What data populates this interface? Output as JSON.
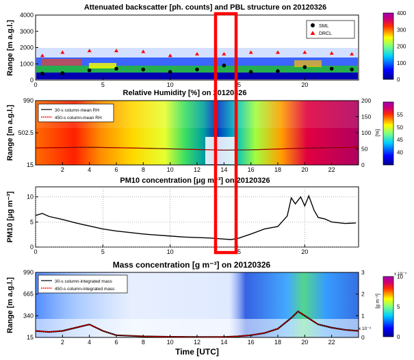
{
  "colors": {
    "highlight_box": "#ff0000",
    "sml": "#000000",
    "drcl": "#ff0000"
  },
  "chart_data": [
    {
      "type": "heatmap",
      "title": "Attenuated backscatter [ph. counts] and PBL structure on 20120326",
      "ylabel": "Range [m a.g.l.]",
      "ylim": [
        0,
        4000
      ],
      "xlim": [
        0,
        24
      ],
      "xticks": [
        "0",
        "5",
        "10",
        "15",
        "20"
      ],
      "yticks": [
        "0",
        "1000",
        "2000",
        "3000",
        "4000"
      ],
      "colorbar": {
        "ticks": [
          "0",
          "100",
          "200",
          "300",
          "400"
        ],
        "range": [
          0,
          400
        ]
      },
      "legend": [
        "SML",
        "DRCL"
      ],
      "series": [
        {
          "name": "SML",
          "x": [
            0.5,
            2,
            4,
            6,
            8,
            10,
            12,
            14,
            16,
            18,
            20,
            22,
            23.5
          ],
          "values": [
            400,
            420,
            600,
            700,
            650,
            500,
            650,
            900,
            500,
            550,
            800,
            700,
            650
          ]
        },
        {
          "name": "DRCL",
          "x": [
            0.5,
            2,
            4,
            6,
            8,
            10,
            12,
            14,
            16,
            18,
            20,
            22,
            23.5
          ],
          "values": [
            1500,
            1700,
            1800,
            1800,
            1750,
            1500,
            1600,
            1600,
            1700,
            1700,
            1700,
            1650,
            1600
          ]
        }
      ]
    },
    {
      "type": "heatmap",
      "title": "Relative Humidity [%] on 20120326",
      "ylabel": "Range [m a.g.l.]",
      "y2label": "[%]",
      "xlim": [
        0,
        24
      ],
      "xticks": [
        "2",
        "4",
        "6",
        "8",
        "10",
        "12",
        "14",
        "16",
        "18",
        "20",
        "22"
      ],
      "yticks": [
        "15",
        "502.5",
        "990"
      ],
      "y2ticks": [
        "0",
        "50",
        "100",
        "150",
        "200"
      ],
      "colorbar": {
        "ticks": [
          "40",
          "45",
          "50",
          "55"
        ],
        "range": [
          35,
          60
        ]
      },
      "legend": [
        "30-s column-mean RH",
        "450-s column-mean RH"
      ],
      "series": [
        {
          "name": "450-s column-mean RH",
          "x": [
            0,
            4,
            8,
            12,
            14,
            16,
            20,
            24
          ],
          "values": [
            53,
            55,
            52,
            48,
            46,
            47,
            52,
            55
          ]
        }
      ]
    },
    {
      "type": "line",
      "title": "PM10 concentration [μg m⁻³] on 20120326",
      "ylabel": "PM10 [μg m⁻³]",
      "ylim": [
        0,
        12
      ],
      "xlim": [
        0,
        24
      ],
      "xticks": [
        "0",
        "5",
        "10",
        "15",
        "20"
      ],
      "yticks": [
        "0",
        "5",
        "10"
      ],
      "grid": true,
      "x": [
        0,
        0.5,
        1,
        2,
        3,
        4,
        5,
        6,
        7,
        8,
        9,
        10,
        11,
        12,
        13,
        14,
        14.5,
        15,
        16,
        17,
        18,
        18.7,
        19,
        19.3,
        19.7,
        20,
        20.3,
        20.7,
        21,
        21.5,
        22,
        23,
        23.8
      ],
      "values": [
        6.3,
        6.7,
        6.1,
        5.5,
        4.8,
        4.2,
        3.6,
        3.2,
        2.9,
        2.6,
        2.4,
        2.2,
        2.0,
        1.9,
        1.8,
        1.6,
        1.5,
        1.7,
        2.6,
        3.6,
        4.1,
        6.2,
        9.8,
        8.6,
        10.0,
        8.2,
        10.2,
        7.3,
        5.9,
        5.6,
        5.0,
        4.7,
        4.8
      ]
    },
    {
      "type": "heatmap",
      "title": "Mass concentration [g m⁻³] on 20120326",
      "xlabel": "Time [UTC]",
      "ylabel": "Range [m a.g.l.]",
      "y2label": "[g m⁻²]",
      "y2scale": "x 10⁻³",
      "xlim": [
        0,
        24
      ],
      "xticks": [
        "2",
        "4",
        "6",
        "8",
        "10",
        "12",
        "14",
        "16",
        "18",
        "20",
        "22"
      ],
      "yticks": [
        "15",
        "340",
        "665",
        "990"
      ],
      "y2ticks": [
        "0",
        "1",
        "2",
        "3"
      ],
      "colorbar": {
        "ticks": [
          "0",
          "5",
          "10"
        ],
        "range": [
          0,
          10
        ],
        "scale": "x 10⁻³"
      },
      "legend": [
        "30-s column-integrated mass",
        "450-s column-integrated mass"
      ],
      "series": [
        {
          "name": "450-s column-integrated mass",
          "x": [
            0,
            1,
            2,
            3,
            4,
            5,
            6,
            8,
            10,
            12,
            14,
            15,
            16,
            17,
            18,
            19,
            19.5,
            20,
            20.5,
            21,
            22,
            23,
            24
          ],
          "values": [
            0.3,
            0.25,
            0.3,
            0.45,
            0.6,
            0.3,
            0.1,
            0.05,
            0.03,
            0.02,
            0.02,
            0.05,
            0.1,
            0.2,
            0.4,
            0.9,
            1.2,
            1.0,
            0.8,
            0.6,
            0.45,
            0.35,
            0.3
          ]
        }
      ]
    }
  ]
}
